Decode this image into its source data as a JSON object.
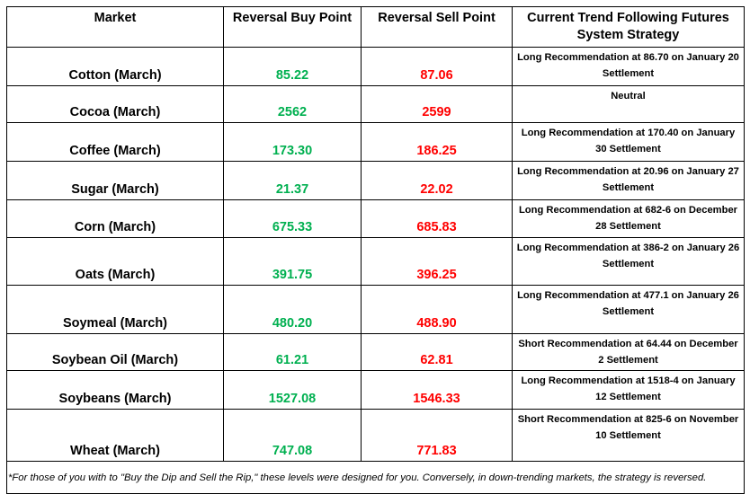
{
  "headers": {
    "market": "Market",
    "buy": "Reversal Buy Point",
    "sell": "Reversal Sell Point",
    "trend": "Current Trend Following Futures System Strategy"
  },
  "rows": [
    {
      "market": "Cotton (March)",
      "buy": "85.22",
      "sell": "87.06",
      "trend": "Long Recommendation at 86.70 on January 20 Settlement"
    },
    {
      "market": "Cocoa (March)",
      "buy": "2562",
      "sell": "2599",
      "trend": "Neutral"
    },
    {
      "market": "Coffee (March)",
      "buy": "173.30",
      "sell": "186.25",
      "trend": "Long Recommendation at 170.40 on January 30 Settlement"
    },
    {
      "market": "Sugar (March)",
      "buy": "21.37",
      "sell": "22.02",
      "trend": "Long Recommendation at 20.96 on January 27 Settlement"
    },
    {
      "market": "Corn (March)",
      "buy": "675.33",
      "sell": "685.83",
      "trend": "Long Recommendation at 682-6 on December 28 Settlement"
    },
    {
      "market": "Oats (March)",
      "buy": "391.75",
      "sell": "396.25",
      "trend": "Long Recommendation at 386-2 on January 26 Settlement"
    },
    {
      "market": "Soymeal (March)",
      "buy": "480.20",
      "sell": "488.90",
      "trend": "Long Recommendation at 477.1 on January 26 Settlement"
    },
    {
      "market": "Soybean Oil (March)",
      "buy": "61.21",
      "sell": "62.81",
      "trend": "Short Recommendation at 64.44 on December 2 Settlement"
    },
    {
      "market": "Soybeans (March)",
      "buy": "1527.08",
      "sell": "1546.33",
      "trend": "Long Recommendation at 1518-4 on January 12 Settlement"
    },
    {
      "market": "Wheat (March)",
      "buy": "747.08",
      "sell": "771.83",
      "trend": "Short Recommendation at 825-6 on November 10 Settlement"
    }
  ],
  "footnote": "*For those of you with to \"Buy the Dip and Sell the Rip,\" these levels were designed for you. Conversely, in down-trending markets, the strategy is reversed.",
  "colors": {
    "buy": "#00b050",
    "sell": "#ff0000",
    "border": "#000000"
  }
}
